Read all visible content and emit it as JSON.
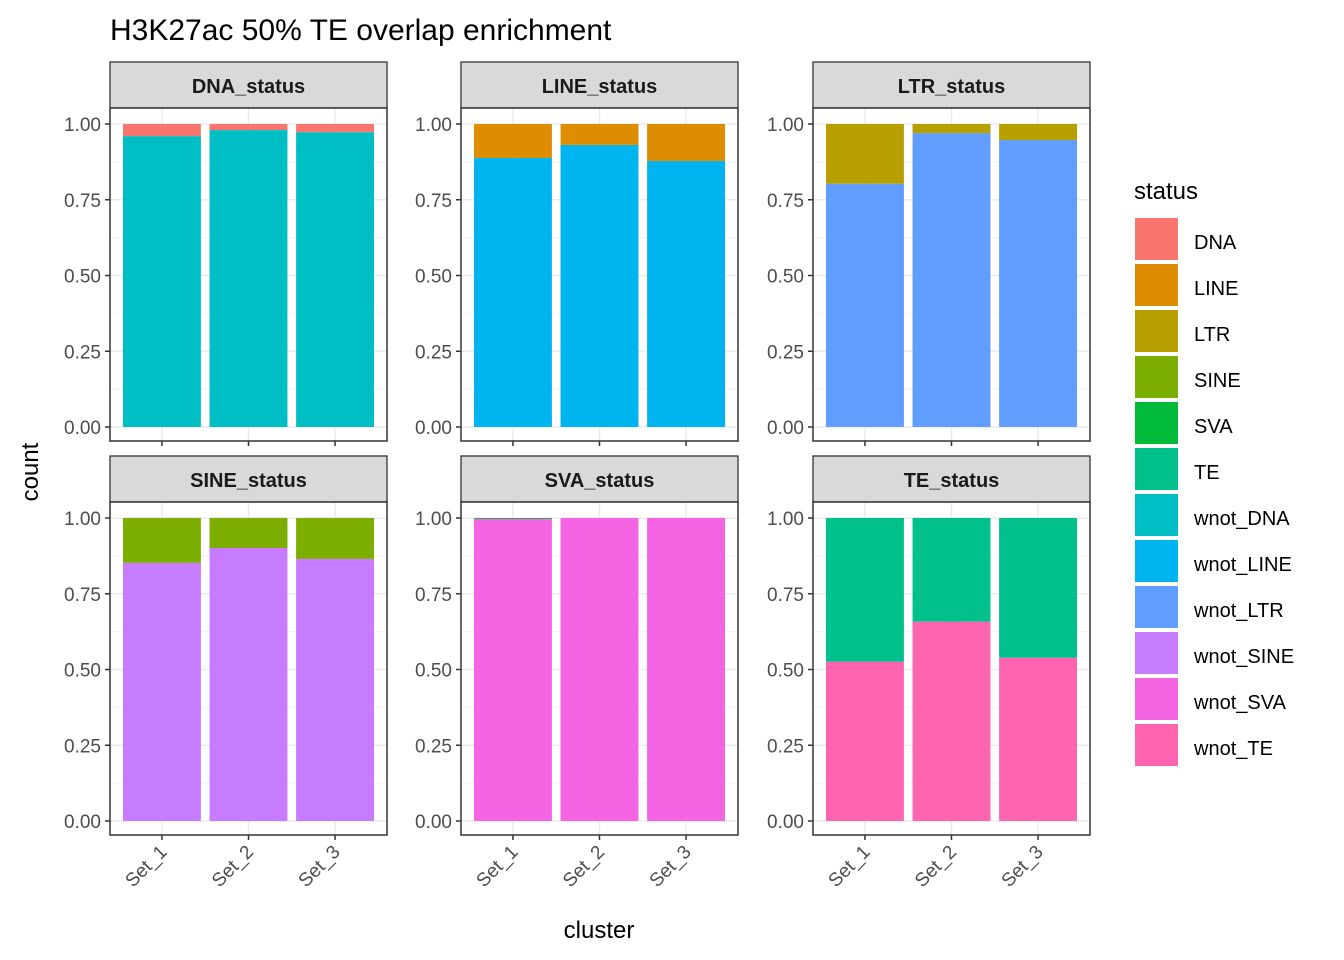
{
  "chart_data": {
    "type": "bar",
    "stacked": true,
    "title": "H3K27ac 50% TE overlap enrichment",
    "xlabel": "cluster",
    "ylabel": "count",
    "ylim": [
      0,
      1
    ],
    "yticks": [
      "0.00",
      "0.25",
      "0.50",
      "0.75",
      "1.00"
    ],
    "ytick_values": [
      0,
      0.25,
      0.5,
      0.75,
      1.0
    ],
    "categories": [
      "Set_1",
      "Set_2",
      "Set_3"
    ],
    "grid": true,
    "legend": {
      "title": "status",
      "position": "right",
      "entries": [
        {
          "label": "DNA",
          "color": "#F8766D"
        },
        {
          "label": "LINE",
          "color": "#DE8C00"
        },
        {
          "label": "LTR",
          "color": "#B79F00"
        },
        {
          "label": "SINE",
          "color": "#7CAE00"
        },
        {
          "label": "SVA",
          "color": "#00BA38"
        },
        {
          "label": "TE",
          "color": "#00C08B"
        },
        {
          "label": "wnot_DNA",
          "color": "#00BFC4"
        },
        {
          "label": "wnot_LINE",
          "color": "#00B4F0"
        },
        {
          "label": "wnot_LTR",
          "color": "#619CFF"
        },
        {
          "label": "wnot_SINE",
          "color": "#C77CFF"
        },
        {
          "label": "wnot_SVA",
          "color": "#F564E3"
        },
        {
          "label": "wnot_TE",
          "color": "#FF64B0"
        }
      ]
    },
    "facets": [
      {
        "name": "DNA_status",
        "series": [
          {
            "name": "wnot_DNA",
            "values": [
              0.96,
              0.98,
              0.973
            ]
          },
          {
            "name": "DNA",
            "values": [
              0.04,
              0.02,
              0.027
            ]
          }
        ]
      },
      {
        "name": "LINE_status",
        "series": [
          {
            "name": "wnot_LINE",
            "values": [
              0.888,
              0.931,
              0.878
            ]
          },
          {
            "name": "LINE",
            "values": [
              0.112,
              0.069,
              0.122
            ]
          }
        ]
      },
      {
        "name": "LTR_status",
        "series": [
          {
            "name": "wnot_LTR",
            "values": [
              0.803,
              0.97,
              0.947
            ]
          },
          {
            "name": "LTR",
            "values": [
              0.197,
              0.03,
              0.053
            ]
          }
        ]
      },
      {
        "name": "SINE_status",
        "series": [
          {
            "name": "wnot_SINE",
            "values": [
              0.852,
              0.901,
              0.865
            ]
          },
          {
            "name": "SINE",
            "values": [
              0.148,
              0.099,
              0.135
            ]
          }
        ]
      },
      {
        "name": "SVA_status",
        "series": [
          {
            "name": "wnot_SVA",
            "values": [
              0.997,
              1.0,
              1.0
            ]
          },
          {
            "name": "SVA",
            "values": [
              0.003,
              0.0,
              0.0
            ]
          }
        ]
      },
      {
        "name": "TE_status",
        "series": [
          {
            "name": "wnot_TE",
            "values": [
              0.526,
              0.658,
              0.539
            ]
          },
          {
            "name": "TE",
            "values": [
              0.474,
              0.342,
              0.461
            ]
          }
        ]
      }
    ]
  }
}
